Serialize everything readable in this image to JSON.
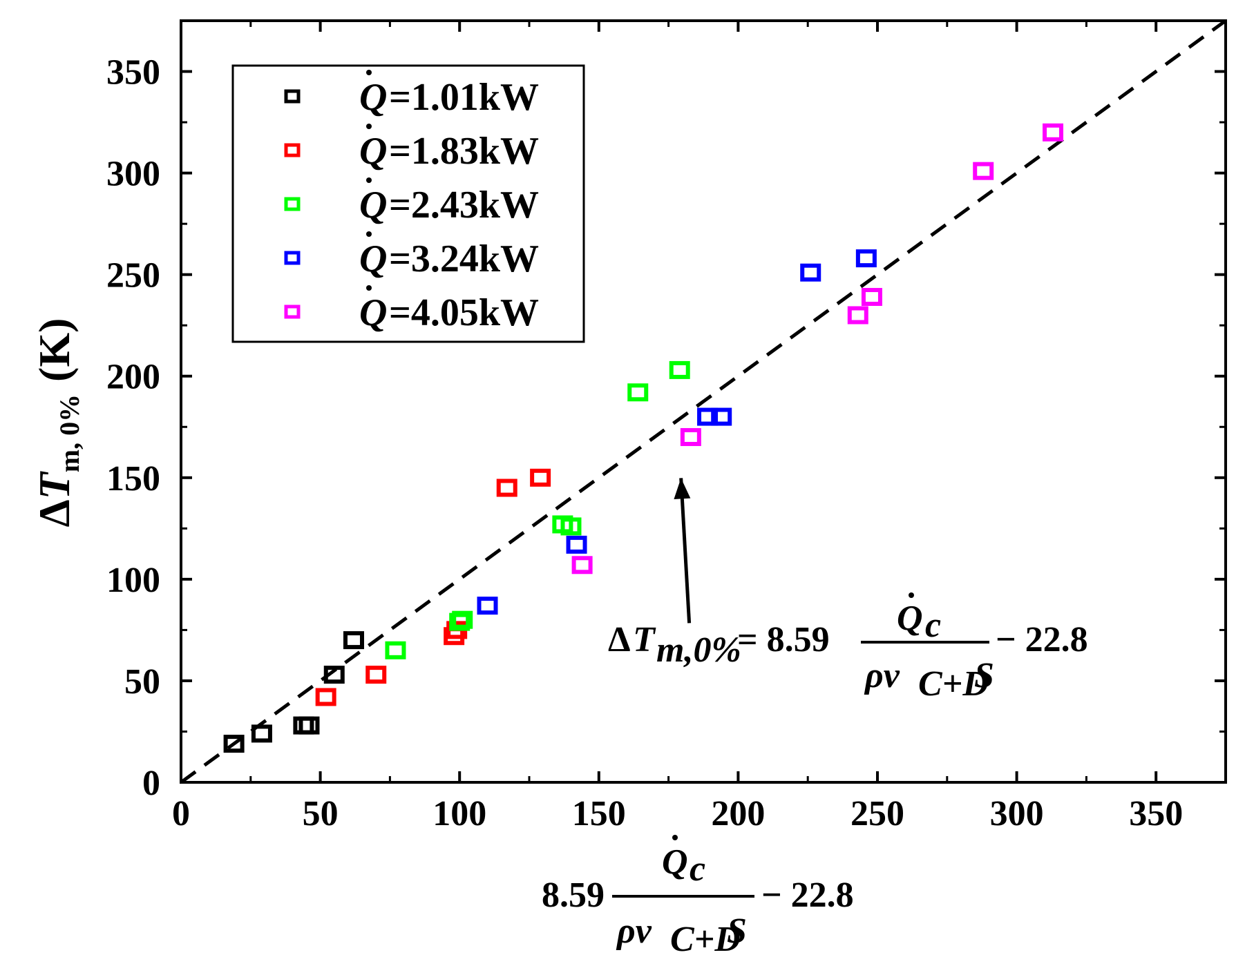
{
  "chart_data": {
    "type": "scatter",
    "xlim": [
      0,
      375
    ],
    "ylim": [
      0,
      375
    ],
    "xticks": [
      0,
      50,
      100,
      150,
      200,
      250,
      300,
      350
    ],
    "yticks": [
      0,
      50,
      100,
      150,
      200,
      250,
      300,
      350
    ],
    "xtick_labels": [
      "0",
      "50",
      "100",
      "150",
      "200",
      "250",
      "300",
      "350"
    ],
    "ytick_labels": [
      "0",
      "50",
      "100",
      "150",
      "200",
      "250",
      "300",
      "350"
    ],
    "ylabel": {
      "delta": "Δ",
      "var": "T",
      "sub": "m, 0%",
      "unit": "(K)"
    },
    "xlabel": {
      "coef": "8.59",
      "numerator": "Q",
      "numerator_sub": "c",
      "denominator": "ρv",
      "denominator_sub": "C+D",
      "denominator_tail": "S",
      "offset": "− 22.8"
    },
    "fit_line": {
      "slope": 1,
      "intercept": 0,
      "style": "dashed"
    },
    "annotation": {
      "lhs_delta": "Δ",
      "lhs_var": "T",
      "lhs_sub": "m,0%",
      "equals": "= 8.59",
      "numerator": "Q",
      "numerator_sub": "c",
      "denominator": "ρv",
      "denominator_sub": "C+D",
      "denominator_tail": "S",
      "offset": "− 22.8",
      "arrow_from": [
        175,
        75
      ],
      "arrow_to": [
        177,
        160
      ]
    },
    "series": [
      {
        "name": "Q̇=1.01kW",
        "q_symbol": "Q",
        "label_value": "=1.01kW",
        "color": "#000000",
        "x": [
          19,
          29,
          44,
          46,
          55,
          62
        ],
        "y": [
          19,
          24,
          28,
          28,
          53,
          70
        ]
      },
      {
        "name": "Q̇=1.83kW",
        "q_symbol": "Q",
        "label_value": "=1.83kW",
        "color": "#ff0000",
        "x": [
          52,
          70,
          98,
          99,
          117,
          129
        ],
        "y": [
          42,
          53,
          72,
          75,
          145,
          150
        ]
      },
      {
        "name": "Q̇=2.43kW",
        "q_symbol": "Q",
        "label_value": "=2.43kW",
        "color": "#00ff00",
        "x": [
          77,
          100,
          101,
          137,
          140,
          164,
          179
        ],
        "y": [
          65,
          79,
          80,
          127,
          126,
          192,
          203
        ]
      },
      {
        "name": "Q̇=3.24kW",
        "q_symbol": "Q",
        "label_value": "=3.24kW",
        "color": "#0000ff",
        "x": [
          110,
          142,
          189,
          194,
          226,
          246
        ],
        "y": [
          87,
          117,
          180,
          180,
          251,
          258
        ]
      },
      {
        "name": "Q̇=4.05kW",
        "q_symbol": "Q",
        "label_value": "=4.05kW",
        "color": "#ff00ff",
        "x": [
          144,
          183,
          243,
          248,
          288,
          313
        ],
        "y": [
          107,
          170,
          230,
          239,
          301,
          320
        ]
      }
    ]
  }
}
